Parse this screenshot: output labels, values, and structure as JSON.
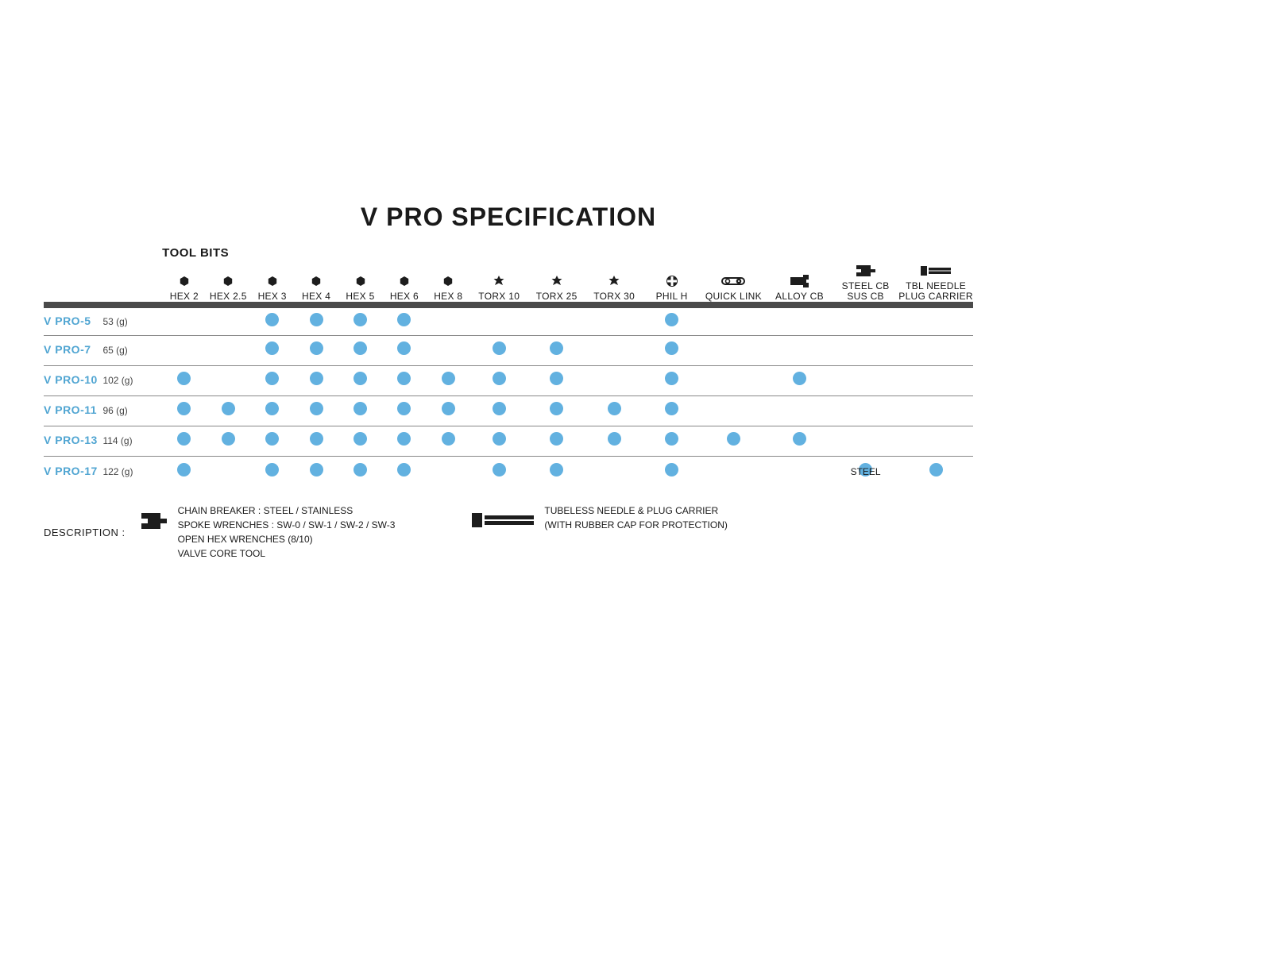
{
  "title": "V PRO SPECIFICATION",
  "toolbits_label": "TOOL BITS",
  "dot_color": "#62b1e0",
  "model_color": "#50a5d2",
  "border_thick_color": "#4a4a4a",
  "border_thin_color": "#888888",
  "columns": [
    {
      "key": "hex2",
      "label": "HEX 2",
      "icon": "hex-icon"
    },
    {
      "key": "hex25",
      "label": "HEX 2.5",
      "icon": "hex-icon"
    },
    {
      "key": "hex3",
      "label": "HEX 3",
      "icon": "hex-icon"
    },
    {
      "key": "hex4",
      "label": "HEX 4",
      "icon": "hex-icon"
    },
    {
      "key": "hex5",
      "label": "HEX 5",
      "icon": "hex-icon"
    },
    {
      "key": "hex6",
      "label": "HEX 6",
      "icon": "hex-icon"
    },
    {
      "key": "hex8",
      "label": "HEX 8",
      "icon": "hex-icon"
    },
    {
      "key": "torx10",
      "label": "TORX 10",
      "icon": "torx-icon"
    },
    {
      "key": "torx25",
      "label": "TORX 25",
      "icon": "torx-icon"
    },
    {
      "key": "torx30",
      "label": "TORX 30",
      "icon": "torx-icon"
    },
    {
      "key": "philh",
      "label": "PHIL H",
      "icon": "phillips-icon"
    },
    {
      "key": "quicklink",
      "label": "QUICK LINK",
      "icon": "quicklink-icon"
    },
    {
      "key": "alloycb",
      "label": "ALLOY CB",
      "icon": "wrench-icon"
    },
    {
      "key": "steelcb",
      "label_line1": "STEEL CB",
      "label_line2": "SUS CB",
      "icon": "chainbreak-icon"
    },
    {
      "key": "tblneedle",
      "label_line1": "TBL NEEDLE",
      "label_line2": "PLUG CARRIER",
      "icon": "needle-icon"
    }
  ],
  "rows": [
    {
      "name": "V PRO-5",
      "weight": "53 (g)",
      "cells": {
        "hex3": "dot",
        "hex4": "dot",
        "hex5": "dot",
        "hex6": "dot",
        "philh": "dot"
      }
    },
    {
      "name": "V PRO-7",
      "weight": "65 (g)",
      "cells": {
        "hex3": "dot",
        "hex4": "dot",
        "hex5": "dot",
        "hex6": "dot",
        "torx10": "dot",
        "torx25": "dot",
        "philh": "dot"
      }
    },
    {
      "name": "V PRO-10",
      "weight": "102 (g)",
      "cells": {
        "hex2": "dot",
        "hex3": "dot",
        "hex4": "dot",
        "hex5": "dot",
        "hex6": "dot",
        "hex8": "dot",
        "torx10": "dot",
        "torx25": "dot",
        "philh": "dot",
        "alloycb": "dot"
      }
    },
    {
      "name": "V PRO-11",
      "weight": "96 (g)",
      "cells": {
        "hex2": "dot",
        "hex25": "dot",
        "hex3": "dot",
        "hex4": "dot",
        "hex5": "dot",
        "hex6": "dot",
        "hex8": "dot",
        "torx10": "dot",
        "torx25": "dot",
        "torx30": "dot",
        "philh": "dot"
      }
    },
    {
      "name": "V PRO-13",
      "weight": "114 (g)",
      "cells": {
        "hex2": "dot",
        "hex25": "dot",
        "hex3": "dot",
        "hex4": "dot",
        "hex5": "dot",
        "hex6": "dot",
        "hex8": "dot",
        "torx10": "dot",
        "torx25": "dot",
        "torx30": "dot",
        "philh": "dot",
        "quicklink": "dot",
        "alloycb": "dot"
      }
    },
    {
      "name": "V PRO-17",
      "weight": "122 (g)",
      "cells": {
        "hex2": "dot",
        "hex3": "dot",
        "hex4": "dot",
        "hex5": "dot",
        "hex6": "dot",
        "torx10": "dot",
        "torx25": "dot",
        "philh": "dot",
        "steelcb": "STEEL",
        "tblneedle": "dot"
      }
    }
  ],
  "description": {
    "label": "DESCRIPTION :",
    "block1_lines": [
      "CHAIN BREAKER : STEEL / STAINLESS",
      "SPOKE WRENCHES : SW-0 / SW-1 / SW-2 / SW-3",
      "OPEN HEX WRENCHES (8/10)",
      "VALVE CORE TOOL"
    ],
    "block2_lines": [
      "TUBELESS NEEDLE & PLUG CARRIER",
      "(WITH RUBBER CAP FOR PROTECTION)"
    ]
  }
}
